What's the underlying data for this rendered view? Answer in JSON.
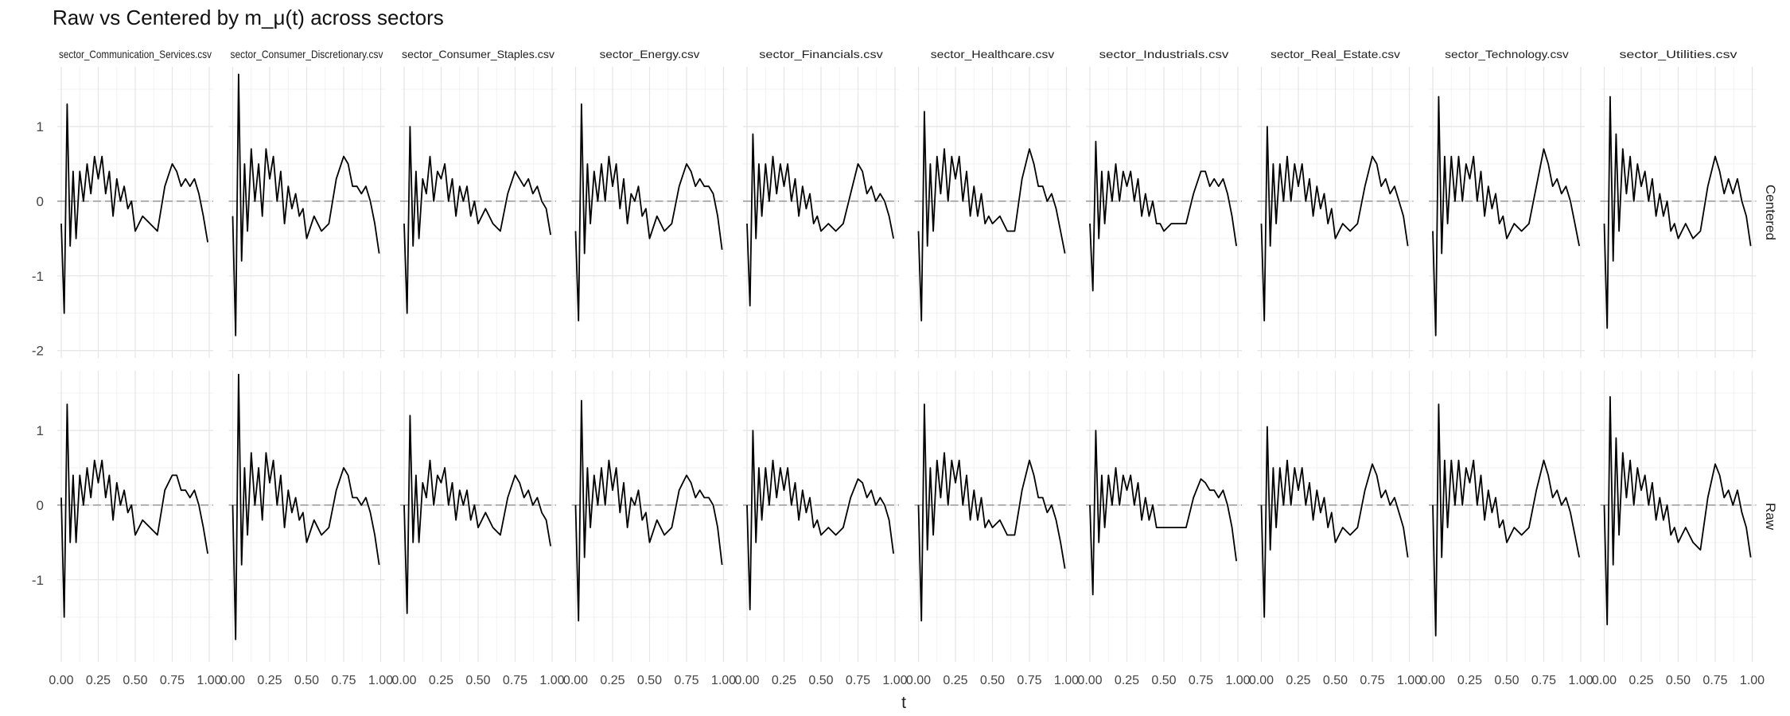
{
  "chart_data": {
    "type": "line",
    "title": "Raw vs Centered by m_μ(t) across sectors",
    "xlabel": "t",
    "ylabel": "",
    "xlim": [
      0,
      1
    ],
    "x_ticks": [
      "0.00",
      "0.25",
      "0.50",
      "0.75",
      "1.00"
    ],
    "y_ticks": [
      "-2",
      "-1",
      "0",
      "1"
    ],
    "ylim": [
      -2.1,
      1.8
    ],
    "grid": true,
    "reference_line": {
      "y": 0,
      "style": "dashed"
    },
    "sectors": [
      "sector_Communication_Services.csv",
      "sector_Consumer_Discretionary.csv",
      "sector_Consumer_Staples.csv",
      "sector_Energy.csv",
      "sector_Financials.csv",
      "sector_Healthcare.csv",
      "sector_Industrials.csv",
      "sector_Real_Estate.csv",
      "sector_Technology.csv",
      "sector_Utilities.csv"
    ],
    "rows": [
      "Centered",
      "Raw"
    ],
    "x": [
      0,
      0.02,
      0.04,
      0.06,
      0.08,
      0.1,
      0.125,
      0.15,
      0.175,
      0.2,
      0.225,
      0.25,
      0.275,
      0.3,
      0.325,
      0.35,
      0.375,
      0.4,
      0.425,
      0.45,
      0.475,
      0.5,
      0.55,
      0.6,
      0.65,
      0.7,
      0.75,
      0.78,
      0.81,
      0.84,
      0.87,
      0.9,
      0.93,
      0.96,
      0.99
    ],
    "series": [
      {
        "row": "Centered",
        "sector": "sector_Communication_Services.csv",
        "values": [
          -0.3,
          -1.5,
          1.3,
          -0.6,
          0.4,
          -0.5,
          0.4,
          0.0,
          0.5,
          0.1,
          0.6,
          0.3,
          0.6,
          0.1,
          0.4,
          -0.2,
          0.3,
          0.0,
          0.2,
          -0.1,
          0.0,
          -0.4,
          -0.2,
          -0.3,
          -0.4,
          0.2,
          0.5,
          0.4,
          0.2,
          0.3,
          0.2,
          0.3,
          0.1,
          -0.2,
          -0.55
        ]
      },
      {
        "row": "Centered",
        "sector": "sector_Consumer_Discretionary.csv",
        "values": [
          -0.2,
          -1.8,
          1.7,
          -0.8,
          0.5,
          -0.4,
          0.7,
          0.0,
          0.5,
          -0.2,
          0.7,
          0.3,
          0.6,
          0.0,
          0.4,
          -0.3,
          0.2,
          -0.1,
          0.1,
          -0.2,
          -0.1,
          -0.5,
          -0.2,
          -0.4,
          -0.3,
          0.3,
          0.6,
          0.5,
          0.2,
          0.2,
          0.1,
          0.2,
          0.0,
          -0.3,
          -0.7
        ]
      },
      {
        "row": "Centered",
        "sector": "sector_Consumer_Staples.csv",
        "values": [
          -0.3,
          -1.5,
          1.0,
          -0.6,
          0.4,
          -0.5,
          0.3,
          0.1,
          0.6,
          0.0,
          0.4,
          0.3,
          0.5,
          0.0,
          0.3,
          -0.2,
          0.2,
          0.0,
          0.2,
          -0.2,
          0.0,
          -0.3,
          -0.1,
          -0.3,
          -0.4,
          0.1,
          0.4,
          0.3,
          0.2,
          0.3,
          0.1,
          0.2,
          0.0,
          -0.1,
          -0.45
        ]
      },
      {
        "row": "Centered",
        "sector": "sector_Energy.csv",
        "values": [
          -0.4,
          -1.6,
          1.3,
          -0.7,
          0.5,
          -0.3,
          0.4,
          0.0,
          0.5,
          0.0,
          0.6,
          0.2,
          0.5,
          -0.1,
          0.3,
          -0.3,
          0.1,
          0.0,
          0.2,
          -0.2,
          -0.1,
          -0.5,
          -0.2,
          -0.4,
          -0.3,
          0.2,
          0.5,
          0.4,
          0.2,
          0.3,
          0.2,
          0.2,
          0.1,
          -0.2,
          -0.65
        ]
      },
      {
        "row": "Centered",
        "sector": "sector_Financials.csv",
        "values": [
          -0.3,
          -1.4,
          0.9,
          -0.5,
          0.5,
          -0.2,
          0.5,
          0.0,
          0.6,
          0.1,
          0.5,
          0.2,
          0.5,
          0.0,
          0.3,
          -0.2,
          0.2,
          -0.1,
          0.1,
          -0.3,
          -0.2,
          -0.4,
          -0.3,
          -0.4,
          -0.3,
          0.1,
          0.5,
          0.4,
          0.1,
          0.2,
          0.0,
          0.1,
          0.0,
          -0.2,
          -0.5
        ]
      },
      {
        "row": "Centered",
        "sector": "sector_Healthcare.csv",
        "values": [
          -0.4,
          -1.6,
          1.2,
          -0.6,
          0.5,
          -0.4,
          0.6,
          0.1,
          0.7,
          0.0,
          0.6,
          0.3,
          0.6,
          0.0,
          0.4,
          -0.2,
          0.2,
          -0.2,
          0.1,
          -0.3,
          -0.2,
          -0.3,
          -0.2,
          -0.4,
          -0.4,
          0.3,
          0.7,
          0.5,
          0.2,
          0.2,
          0.0,
          0.1,
          -0.1,
          -0.4,
          -0.7
        ]
      },
      {
        "row": "Centered",
        "sector": "sector_Industrials.csv",
        "values": [
          -0.3,
          -1.2,
          0.8,
          -0.5,
          0.4,
          -0.3,
          0.4,
          0.0,
          0.5,
          0.0,
          0.4,
          0.2,
          0.4,
          0.0,
          0.3,
          -0.2,
          0.1,
          -0.2,
          0.0,
          -0.3,
          -0.3,
          -0.4,
          -0.3,
          -0.3,
          -0.3,
          0.1,
          0.4,
          0.4,
          0.2,
          0.3,
          0.2,
          0.3,
          0.1,
          -0.2,
          -0.6
        ]
      },
      {
        "row": "Centered",
        "sector": "sector_Real_Estate.csv",
        "values": [
          -0.3,
          -1.6,
          1.0,
          -0.6,
          0.5,
          -0.3,
          0.5,
          0.0,
          0.6,
          0.0,
          0.5,
          0.2,
          0.5,
          0.0,
          0.3,
          -0.2,
          0.2,
          -0.1,
          0.1,
          -0.3,
          -0.1,
          -0.5,
          -0.3,
          -0.4,
          -0.3,
          0.2,
          0.6,
          0.5,
          0.2,
          0.3,
          0.1,
          0.2,
          0.0,
          -0.2,
          -0.6
        ]
      },
      {
        "row": "Centered",
        "sector": "sector_Technology.csv",
        "values": [
          -0.4,
          -1.8,
          1.4,
          -0.7,
          0.6,
          -0.3,
          0.6,
          0.0,
          0.6,
          0.0,
          0.5,
          0.3,
          0.6,
          0.0,
          0.4,
          -0.2,
          0.2,
          -0.1,
          0.1,
          -0.3,
          -0.2,
          -0.5,
          -0.3,
          -0.4,
          -0.3,
          0.2,
          0.7,
          0.5,
          0.2,
          0.3,
          0.1,
          0.2,
          0.0,
          -0.3,
          -0.6
        ]
      },
      {
        "row": "Centered",
        "sector": "sector_Utilities.csv",
        "values": [
          -0.3,
          -1.7,
          1.4,
          -0.8,
          0.9,
          -0.4,
          0.7,
          0.1,
          0.6,
          0.0,
          0.5,
          0.2,
          0.4,
          0.0,
          0.3,
          -0.2,
          0.1,
          -0.2,
          0.0,
          -0.4,
          -0.3,
          -0.5,
          -0.3,
          -0.5,
          -0.4,
          0.2,
          0.6,
          0.4,
          0.1,
          0.3,
          0.1,
          0.3,
          0.0,
          -0.2,
          -0.6
        ]
      },
      {
        "row": "Raw",
        "sector": "sector_Communication_Services.csv",
        "values": [
          0.1,
          -1.5,
          1.35,
          -0.5,
          0.4,
          -0.5,
          0.4,
          0.0,
          0.5,
          0.1,
          0.6,
          0.3,
          0.6,
          0.1,
          0.4,
          -0.2,
          0.3,
          0.0,
          0.2,
          -0.1,
          0.0,
          -0.4,
          -0.2,
          -0.3,
          -0.4,
          0.2,
          0.4,
          0.4,
          0.2,
          0.2,
          0.1,
          0.2,
          0.0,
          -0.3,
          -0.65
        ]
      },
      {
        "row": "Raw",
        "sector": "sector_Consumer_Discretionary.csv",
        "values": [
          0.0,
          -1.8,
          1.75,
          -0.8,
          0.5,
          -0.4,
          0.7,
          0.0,
          0.5,
          -0.2,
          0.7,
          0.3,
          0.6,
          0.0,
          0.4,
          -0.3,
          0.2,
          -0.1,
          0.1,
          -0.2,
          -0.1,
          -0.5,
          -0.2,
          -0.4,
          -0.3,
          0.2,
          0.5,
          0.4,
          0.1,
          0.1,
          0.0,
          0.1,
          -0.1,
          -0.4,
          -0.8
        ]
      },
      {
        "row": "Raw",
        "sector": "sector_Consumer_Staples.csv",
        "values": [
          0.0,
          -1.45,
          1.2,
          -0.5,
          0.4,
          -0.5,
          0.3,
          0.1,
          0.6,
          0.0,
          0.4,
          0.3,
          0.5,
          0.0,
          0.3,
          -0.2,
          0.2,
          0.0,
          0.2,
          -0.2,
          0.0,
          -0.3,
          -0.1,
          -0.3,
          -0.4,
          0.1,
          0.4,
          0.3,
          0.1,
          0.2,
          0.0,
          0.1,
          -0.1,
          -0.2,
          -0.55
        ]
      },
      {
        "row": "Raw",
        "sector": "sector_Energy.csv",
        "values": [
          0.0,
          -1.55,
          1.4,
          -0.7,
          0.5,
          -0.3,
          0.4,
          0.0,
          0.5,
          0.0,
          0.6,
          0.2,
          0.5,
          -0.1,
          0.3,
          -0.3,
          0.1,
          0.0,
          0.2,
          -0.2,
          -0.1,
          -0.5,
          -0.2,
          -0.4,
          -0.3,
          0.2,
          0.4,
          0.3,
          0.1,
          0.2,
          0.1,
          0.1,
          0.0,
          -0.3,
          -0.8
        ]
      },
      {
        "row": "Raw",
        "sector": "sector_Financials.csv",
        "values": [
          0.0,
          -1.4,
          1.0,
          -0.5,
          0.5,
          -0.2,
          0.5,
          0.0,
          0.6,
          0.1,
          0.5,
          0.2,
          0.5,
          0.0,
          0.3,
          -0.2,
          0.2,
          -0.1,
          0.1,
          -0.3,
          -0.2,
          -0.4,
          -0.3,
          -0.4,
          -0.3,
          0.1,
          0.35,
          0.3,
          0.1,
          0.2,
          0.0,
          0.1,
          0.0,
          -0.2,
          -0.65
        ]
      },
      {
        "row": "Raw",
        "sector": "sector_Healthcare.csv",
        "values": [
          0.0,
          -1.55,
          1.35,
          -0.6,
          0.5,
          -0.4,
          0.6,
          0.1,
          0.7,
          0.0,
          0.6,
          0.3,
          0.6,
          0.0,
          0.4,
          -0.2,
          0.2,
          -0.2,
          0.1,
          -0.3,
          -0.2,
          -0.3,
          -0.2,
          -0.4,
          -0.4,
          0.2,
          0.6,
          0.4,
          0.1,
          0.1,
          -0.1,
          0.0,
          -0.2,
          -0.5,
          -0.85
        ]
      },
      {
        "row": "Raw",
        "sector": "sector_Industrials.csv",
        "values": [
          0.0,
          -1.2,
          1.0,
          -0.5,
          0.4,
          -0.3,
          0.4,
          0.0,
          0.5,
          0.0,
          0.4,
          0.2,
          0.4,
          0.0,
          0.3,
          -0.2,
          0.1,
          -0.2,
          0.0,
          -0.3,
          -0.3,
          -0.3,
          -0.3,
          -0.3,
          -0.3,
          0.1,
          0.35,
          0.3,
          0.2,
          0.2,
          0.1,
          0.2,
          0.0,
          -0.3,
          -0.75
        ]
      },
      {
        "row": "Raw",
        "sector": "sector_Real_Estate.csv",
        "values": [
          0.0,
          -1.5,
          1.05,
          -0.6,
          0.5,
          -0.3,
          0.5,
          0.0,
          0.6,
          0.0,
          0.5,
          0.2,
          0.5,
          0.0,
          0.3,
          -0.2,
          0.2,
          -0.1,
          0.1,
          -0.3,
          -0.1,
          -0.5,
          -0.3,
          -0.4,
          -0.3,
          0.2,
          0.55,
          0.4,
          0.1,
          0.2,
          0.0,
          0.1,
          -0.1,
          -0.3,
          -0.7
        ]
      },
      {
        "row": "Raw",
        "sector": "sector_Technology.csv",
        "values": [
          0.0,
          -1.75,
          1.35,
          -0.7,
          0.6,
          -0.3,
          0.6,
          0.0,
          0.6,
          0.0,
          0.5,
          0.3,
          0.6,
          0.0,
          0.4,
          -0.2,
          0.2,
          -0.1,
          0.1,
          -0.3,
          -0.2,
          -0.5,
          -0.3,
          -0.4,
          -0.3,
          0.2,
          0.6,
          0.4,
          0.1,
          0.2,
          0.0,
          0.1,
          -0.1,
          -0.4,
          -0.7
        ]
      },
      {
        "row": "Raw",
        "sector": "sector_Utilities.csv",
        "values": [
          0.0,
          -1.6,
          1.45,
          -0.8,
          0.9,
          -0.4,
          0.7,
          0.1,
          0.6,
          0.0,
          0.5,
          0.2,
          0.4,
          0.0,
          0.3,
          -0.2,
          0.1,
          -0.2,
          0.0,
          -0.4,
          -0.3,
          -0.5,
          -0.3,
          -0.5,
          -0.6,
          0.1,
          0.55,
          0.4,
          0.1,
          0.2,
          0.0,
          0.2,
          -0.1,
          -0.3,
          -0.7
        ]
      }
    ]
  }
}
